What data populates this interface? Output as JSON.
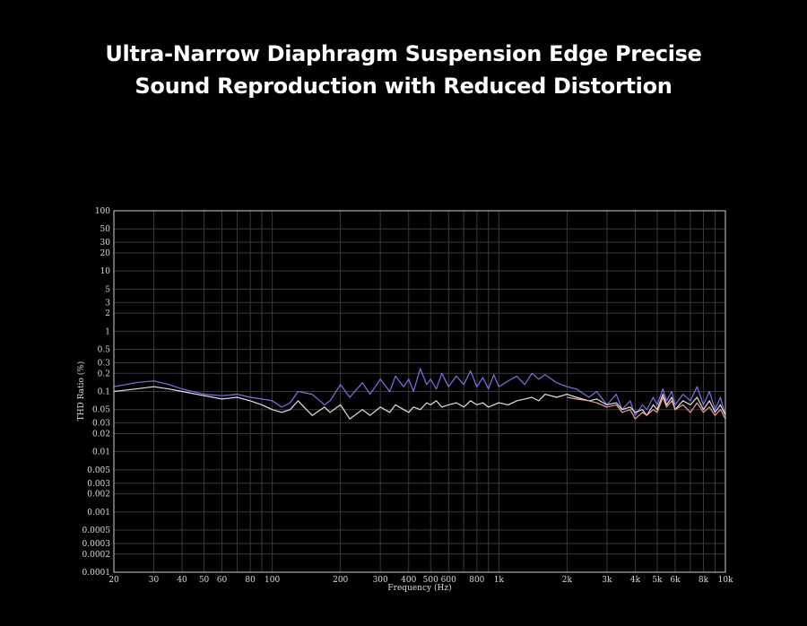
{
  "title": {
    "line1": "Ultra-Narrow Diaphragm Suspension Edge Precise",
    "line2": "Sound Reproduction with Reduced Distortion"
  },
  "colors": {
    "background": "#000000",
    "grid": "#3a3a3a",
    "frame": "#d0d0d0",
    "series_blue": "#7d72e6",
    "series_white": "#e6e0e6",
    "series_salmon": "#f0a090"
  },
  "chart_data": {
    "type": "line",
    "xlabel": "Frequency (Hz)",
    "ylabel": "THD Ratio (%)",
    "xscale": "log",
    "yscale": "log",
    "xlim": [
      20,
      10000
    ],
    "ylim": [
      0.0001,
      100
    ],
    "grid": true,
    "x_tick_labels": [
      "20",
      "30",
      "40",
      "50",
      "60",
      "80",
      "100",
      "200",
      "300",
      "400",
      "500",
      "600",
      "800",
      "1k",
      "2k",
      "3k",
      "4k",
      "5k",
      "6k",
      "8k",
      "10k"
    ],
    "y_tick_labels": [
      "100",
      "50",
      "30",
      "20",
      "10",
      "5",
      "3",
      "2",
      "1",
      "0.5",
      "0.3",
      "0.2",
      "0.1",
      "0.05",
      "0.03",
      "0.02",
      "0.01",
      "0.005",
      "0.003",
      "0.002",
      "0.001",
      "0.0005",
      "0.0003",
      "0.0002",
      "0.0001"
    ],
    "series": [
      {
        "color": "#7d72e6",
        "x": [
          20,
          25,
          30,
          35,
          40,
          50,
          60,
          70,
          80,
          90,
          100,
          110,
          120,
          130,
          150,
          170,
          180,
          200,
          220,
          250,
          270,
          300,
          330,
          350,
          380,
          400,
          420,
          450,
          480,
          500,
          530,
          560,
          600,
          650,
          700,
          750,
          800,
          850,
          900,
          950,
          1000,
          1100,
          1200,
          1300,
          1400,
          1500,
          1600,
          1800,
          2000,
          2200,
          2500,
          2700,
          3000,
          3300,
          3500,
          3800,
          4000,
          4300,
          4500,
          4800,
          5000,
          5300,
          5500,
          5800,
          6000,
          6500,
          7000,
          7500,
          8000,
          8500,
          9000,
          9500,
          10000
        ],
        "y": [
          0.12,
          0.14,
          0.15,
          0.13,
          0.11,
          0.09,
          0.085,
          0.09,
          0.08,
          0.075,
          0.07,
          0.055,
          0.065,
          0.1,
          0.09,
          0.06,
          0.07,
          0.13,
          0.08,
          0.14,
          0.09,
          0.16,
          0.1,
          0.18,
          0.12,
          0.16,
          0.1,
          0.24,
          0.13,
          0.16,
          0.11,
          0.2,
          0.12,
          0.18,
          0.13,
          0.22,
          0.12,
          0.17,
          0.11,
          0.19,
          0.12,
          0.15,
          0.18,
          0.13,
          0.2,
          0.16,
          0.19,
          0.14,
          0.12,
          0.11,
          0.08,
          0.1,
          0.06,
          0.09,
          0.05,
          0.07,
          0.04,
          0.06,
          0.05,
          0.08,
          0.06,
          0.11,
          0.07,
          0.1,
          0.06,
          0.09,
          0.07,
          0.12,
          0.06,
          0.1,
          0.05,
          0.08,
          0.04
        ]
      },
      {
        "color": "#e6e0e6",
        "x": [
          20,
          25,
          30,
          35,
          40,
          50,
          60,
          70,
          80,
          90,
          100,
          110,
          120,
          130,
          150,
          170,
          180,
          200,
          220,
          250,
          270,
          300,
          330,
          350,
          380,
          400,
          420,
          450,
          480,
          500,
          530,
          560,
          600,
          650,
          700,
          750,
          800,
          850,
          900,
          950,
          1000,
          1100,
          1200,
          1300,
          1400,
          1500,
          1600,
          1800,
          2000,
          2200,
          2500,
          2700,
          3000,
          3300,
          3500,
          3800,
          4000,
          4300,
          4500,
          4800,
          5000,
          5300,
          5500,
          5800,
          6000,
          6500,
          7000,
          7500,
          8000,
          8500,
          9000,
          9500,
          10000
        ],
        "y": [
          0.1,
          0.11,
          0.12,
          0.11,
          0.1,
          0.085,
          0.075,
          0.08,
          0.07,
          0.06,
          0.05,
          0.045,
          0.05,
          0.07,
          0.04,
          0.055,
          0.045,
          0.06,
          0.035,
          0.05,
          0.04,
          0.055,
          0.045,
          0.06,
          0.05,
          0.045,
          0.055,
          0.05,
          0.065,
          0.06,
          0.07,
          0.055,
          0.06,
          0.065,
          0.055,
          0.07,
          0.06,
          0.065,
          0.055,
          0.06,
          0.065,
          0.06,
          0.07,
          0.075,
          0.08,
          0.07,
          0.09,
          0.08,
          0.09,
          0.08,
          0.07,
          0.075,
          0.06,
          0.065,
          0.05,
          0.055,
          0.045,
          0.05,
          0.04,
          0.06,
          0.05,
          0.09,
          0.06,
          0.08,
          0.05,
          0.07,
          0.06,
          0.08,
          0.05,
          0.07,
          0.045,
          0.06,
          0.04
        ]
      },
      {
        "color": "#f0a090",
        "x": [
          2000,
          2200,
          2500,
          2700,
          3000,
          3300,
          3500,
          3800,
          4000,
          4300,
          4500,
          4800,
          5000,
          5300,
          5500,
          5800,
          6000,
          6500,
          7000,
          7500,
          8000,
          8500,
          9000,
          9500,
          10000
        ],
        "y": [
          0.08,
          0.075,
          0.07,
          0.065,
          0.055,
          0.06,
          0.045,
          0.05,
          0.035,
          0.045,
          0.04,
          0.05,
          0.045,
          0.08,
          0.055,
          0.07,
          0.05,
          0.06,
          0.045,
          0.065,
          0.045,
          0.055,
          0.04,
          0.05,
          0.035
        ]
      }
    ]
  }
}
